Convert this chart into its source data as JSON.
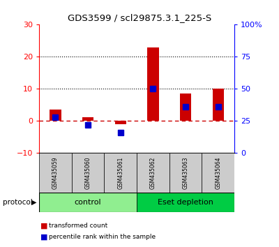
{
  "title": "GDS3599 / scl29875.3.1_225-S",
  "samples": [
    "GSM435059",
    "GSM435060",
    "GSM435061",
    "GSM435062",
    "GSM435063",
    "GSM435064"
  ],
  "red_values": [
    3.5,
    1.2,
    -1.0,
    23.0,
    8.5,
    10.0
  ],
  "blue_right_axis": [
    28,
    22,
    16,
    50,
    36,
    36
  ],
  "ylim_left": [
    -10,
    30
  ],
  "ylim_right": [
    0,
    100
  ],
  "yticks_left": [
    -10,
    0,
    10,
    20,
    30
  ],
  "ytick_labels_right": [
    "0",
    "25",
    "50",
    "75",
    "100%"
  ],
  "yticks_right": [
    0,
    25,
    50,
    75,
    100
  ],
  "control_color": "#90ee90",
  "eset_color": "#00cc44",
  "bar_color_red": "#cc0000",
  "bar_color_blue": "#0000cc",
  "plot_bg": "#ffffff",
  "zero_line_color": "#cc0000",
  "protocol_label": "protocol",
  "control_label": "control",
  "eset_label": "Eset depletion",
  "legend_red": "transformed count",
  "legend_blue": "percentile rank within the sample",
  "bar_width": 0.35,
  "blue_marker_size": 6
}
